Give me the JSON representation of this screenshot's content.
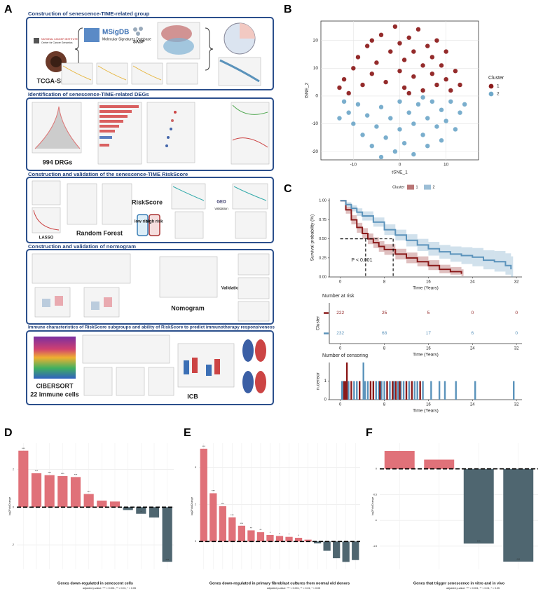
{
  "workflow": {
    "panel": "A",
    "sections": [
      {
        "title": "Construction of senescence-TIME-related group",
        "labels": [
          "NATIONAL CANCER INSTITUTE",
          "Center for Cancer Genomics",
          "TCGA-SKCM",
          "MSigDB",
          "Molecular Signatures Database",
          "SASP"
        ]
      },
      {
        "title": "Identification of senescence-TIME-related DEGs",
        "labels": [
          "994 DRGs"
        ]
      },
      {
        "title": "Construction and validation of the senescence-TIME RiskScore",
        "labels": [
          "LASSO",
          "Random Forest",
          "RiskScore",
          "low risk",
          "high risk",
          "GEO",
          "Validation"
        ]
      },
      {
        "title": "Construction and validation of normogram",
        "labels": [
          "Nomogram",
          "Validation"
        ]
      },
      {
        "title": "Immune characteristics of RiskScore subgroups and ability of RiskScore to predict immunotherapy responsiveness",
        "labels": [
          "CIBERSORT",
          "22 immune cells",
          "ICB"
        ]
      }
    ]
  },
  "chart_data": [
    {
      "type": "scatter",
      "panel": "B",
      "xlabel": "tSNE_1",
      "ylabel": "tSNE_2",
      "legend_title": "Cluster",
      "xlim": [
        -17,
        17
      ],
      "xticks": [
        -10,
        0,
        10
      ],
      "ylim": [
        -23,
        27
      ],
      "yticks": [
        -20,
        -10,
        0,
        10,
        20
      ],
      "grid": true,
      "legend": "right",
      "series": [
        {
          "name": "1",
          "color": "#8b1a1a",
          "x": [
            -13,
            -12,
            -10,
            -9,
            -8,
            -7,
            -6,
            -5,
            -4,
            -3,
            -2,
            -1,
            0,
            0,
            1,
            1,
            2,
            3,
            3,
            4,
            5,
            5,
            6,
            7,
            7,
            8,
            8,
            9,
            10,
            10,
            11,
            12,
            13,
            -11,
            -6,
            2
          ],
          "values": [
            3,
            6,
            10,
            14,
            4,
            18,
            8,
            12,
            22,
            5,
            16,
            25,
            9,
            19,
            3,
            13,
            21,
            7,
            16,
            24,
            11,
            2,
            18,
            8,
            14,
            4,
            20,
            11,
            6,
            16,
            2,
            9,
            4,
            1,
            20,
            1
          ]
        },
        {
          "name": "2",
          "color": "#6fa8c9",
          "x": [
            -12,
            -11,
            -10,
            -9,
            -8,
            -7,
            -6,
            -5,
            -4,
            -3,
            -2,
            -1,
            0,
            0,
            1,
            2,
            3,
            3,
            4,
            5,
            6,
            6,
            7,
            8,
            9,
            9,
            10,
            11,
            12,
            13,
            -4,
            14,
            -13,
            5
          ],
          "values": [
            -2,
            -6,
            -10,
            -3,
            -14,
            -7,
            -18,
            -11,
            -4,
            -15,
            -8,
            -20,
            -2,
            -12,
            -17,
            -6,
            -10,
            -21,
            -3,
            -14,
            -8,
            -18,
            -2,
            -11,
            -5,
            -16,
            -9,
            -2,
            -12,
            -6,
            -22,
            -3,
            -8,
            -0.5
          ]
        }
      ]
    },
    {
      "type": "line",
      "panel": "C",
      "xlabel": "Time (Years)",
      "ylabel": "Survival probability (%)",
      "legend_title": "Cluster",
      "annotation": "P < 0.001",
      "xlim": [
        -2,
        33
      ],
      "xticks": [
        0,
        8,
        16,
        24,
        32
      ],
      "ylim": [
        0,
        1.03
      ],
      "yticks": [
        {
          "value": 0,
          "label": "0.00"
        },
        {
          "value": 0.25,
          "label": "0.25"
        },
        {
          "value": 0.5,
          "label": "0.50"
        },
        {
          "value": 0.75,
          "label": "0.75"
        },
        {
          "value": 1,
          "label": "1.00"
        }
      ],
      "legend": "top",
      "series": [
        {
          "name": "1",
          "color": "#8b1a1a",
          "median": 4.6,
          "x": [
            0,
            1,
            2,
            3,
            4,
            5,
            6,
            7,
            8,
            10,
            12,
            14,
            16,
            18,
            20,
            22
          ],
          "values": [
            1,
            0.88,
            0.75,
            0.65,
            0.57,
            0.5,
            0.45,
            0.4,
            0.36,
            0.3,
            0.25,
            0.2,
            0.15,
            0.1,
            0.07,
            0.04
          ],
          "upper": [
            1,
            0.92,
            0.81,
            0.71,
            0.64,
            0.57,
            0.52,
            0.47,
            0.43,
            0.37,
            0.32,
            0.27,
            0.22,
            0.16,
            0.13,
            0.1
          ],
          "lower": [
            1,
            0.83,
            0.69,
            0.58,
            0.5,
            0.43,
            0.38,
            0.33,
            0.29,
            0.23,
            0.18,
            0.14,
            0.09,
            0.05,
            0.03,
            0.01
          ]
        },
        {
          "name": "2",
          "color": "#5b93bb",
          "median": 9.6,
          "x": [
            0,
            1,
            2,
            3,
            4,
            6,
            8,
            10,
            12,
            14,
            16,
            18,
            20,
            22,
            24,
            26,
            28,
            30,
            31
          ],
          "values": [
            1,
            0.95,
            0.9,
            0.85,
            0.8,
            0.72,
            0.62,
            0.55,
            0.48,
            0.42,
            0.37,
            0.33,
            0.3,
            0.28,
            0.26,
            0.22,
            0.2,
            0.15,
            0.1
          ],
          "upper": [
            1,
            0.98,
            0.94,
            0.9,
            0.86,
            0.78,
            0.69,
            0.62,
            0.56,
            0.5,
            0.46,
            0.42,
            0.4,
            0.39,
            0.38,
            0.35,
            0.34,
            0.31,
            0.27
          ],
          "lower": [
            1,
            0.92,
            0.86,
            0.8,
            0.74,
            0.66,
            0.55,
            0.48,
            0.4,
            0.34,
            0.28,
            0.24,
            0.2,
            0.17,
            0.14,
            0.1,
            0.07,
            0.03,
            0
          ]
        }
      ]
    },
    {
      "type": "table",
      "title": "Number at risk",
      "ylabel": "Cluster",
      "xlabel": "Time (Years)",
      "xlim": [
        -2,
        33
      ],
      "xticks": [
        0,
        8,
        16,
        24,
        32
      ],
      "series": [
        {
          "name": "1",
          "color": "#8b1a1a",
          "values": [
            222,
            25,
            5,
            0,
            0
          ]
        },
        {
          "name": "2",
          "color": "#5b93bb",
          "values": [
            232,
            68,
            17,
            6,
            0
          ]
        }
      ]
    },
    {
      "type": "bar",
      "title": "Number of censoring",
      "ylabel": "n.censor",
      "xlabel": "Time (Years)",
      "xlim": [
        -2,
        33
      ],
      "xticks": [
        0,
        8,
        16,
        24,
        32
      ],
      "ylim": [
        0,
        2
      ],
      "yticks": [
        0,
        1
      ],
      "series": [
        {
          "name": "2",
          "color": "#5b93bb",
          "x": [
            0.3,
            0.5,
            1.0,
            1.5,
            2.5,
            3.0,
            4.2,
            4.5,
            5.0,
            6.5,
            7.0,
            7.5,
            8.0,
            9.0,
            9.8,
            10.5,
            11.0,
            11.5,
            12.5,
            13.5,
            14.0,
            15.0,
            16.5,
            18.0,
            19.0,
            21.0,
            24.5,
            31.5
          ],
          "values": [
            1,
            1,
            1,
            1,
            1,
            1,
            2,
            1,
            1,
            1,
            1,
            1,
            1,
            1,
            1,
            1,
            1,
            1,
            1,
            1,
            1,
            1,
            1,
            1,
            1,
            1,
            1,
            1
          ]
        },
        {
          "name": "1",
          "color": "#8b1a1a",
          "x": [
            0.7,
            0.9,
            1.2,
            2.0,
            3.5,
            5.5,
            6.0,
            7.2,
            8.5,
            9.5,
            10.1,
            10.8,
            12.0,
            13.0,
            14.5
          ],
          "values": [
            1,
            1,
            2,
            1,
            1,
            1,
            1,
            1,
            1,
            1,
            1,
            1,
            1,
            1,
            1
          ]
        }
      ]
    },
    {
      "type": "bar",
      "panel": "D",
      "xlabel": "Genes down-regulated in senescent cells",
      "footnote": "adjusted p-value: *** < 0.001, ** < 0.01, * < 0.05",
      "ylabel": "log2FoldChange",
      "categories": [
        null,
        null,
        null,
        null,
        null,
        null,
        null,
        null,
        null,
        null,
        null,
        null
      ],
      "values": [
        3.0,
        1.8,
        1.7,
        1.65,
        1.6,
        0.7,
        0.35,
        0.3,
        -0.15,
        -0.35,
        -0.55,
        -2.9
      ],
      "annotations": [
        "***",
        "***",
        "***",
        "***",
        "***",
        "***",
        null,
        null,
        "*",
        "*",
        null,
        "***"
      ],
      "colors": {
        "positive": "#e07179",
        "negative": "#4f6670"
      },
      "ylim": [
        -3.3,
        3.4
      ],
      "yticks": [
        -2,
        0,
        2
      ],
      "grid": true
    },
    {
      "type": "bar",
      "panel": "E",
      "xlabel": "Genes down-regulated in primary fibroblast cultures from normal old donors",
      "footnote": "adjusted p-value: *** < 0.001, ** < 0.01, * < 0.05",
      "ylabel": "log2FoldChange",
      "categories": [
        null,
        null,
        null,
        null,
        null,
        null,
        null,
        null,
        null,
        null,
        null,
        null,
        null,
        null,
        null,
        null,
        null
      ],
      "values": [
        5.0,
        2.6,
        1.9,
        1.3,
        0.85,
        0.6,
        0.5,
        0.35,
        0.3,
        0.25,
        0.2,
        0.1,
        -0.1,
        -0.5,
        -0.9,
        -1.1,
        -1.0
      ],
      "annotations": [
        "***",
        "***",
        "***",
        "***",
        "***",
        "**",
        "**",
        "*",
        "*",
        "*",
        "*",
        null,
        null,
        null,
        null,
        null,
        null
      ],
      "colors": {
        "positive": "#e07179",
        "negative": "#4f6670"
      },
      "ylim": [
        -1.5,
        5.3
      ],
      "yticks": [
        0,
        2,
        4
      ],
      "grid": true
    },
    {
      "type": "bar",
      "panel": "F",
      "xlabel": "Genes that trigger senescence in vitro and in vivo",
      "footnote": "adjusted p-value: *** < 0.001, ** < 0.01, * < 0.05",
      "ylabel": "log2FoldChange",
      "categories": [
        null,
        null,
        null,
        null
      ],
      "values": [
        0.35,
        0.18,
        -1.45,
        -1.8
      ],
      "annotations": [
        null,
        null,
        "***",
        "***"
      ],
      "colors": {
        "positive": "#e07179",
        "negative": "#4f6670"
      },
      "ylim": [
        -1.95,
        0.5
      ],
      "yticks": [
        -1.5,
        -1,
        -0.5,
        0
      ],
      "grid": true
    }
  ]
}
